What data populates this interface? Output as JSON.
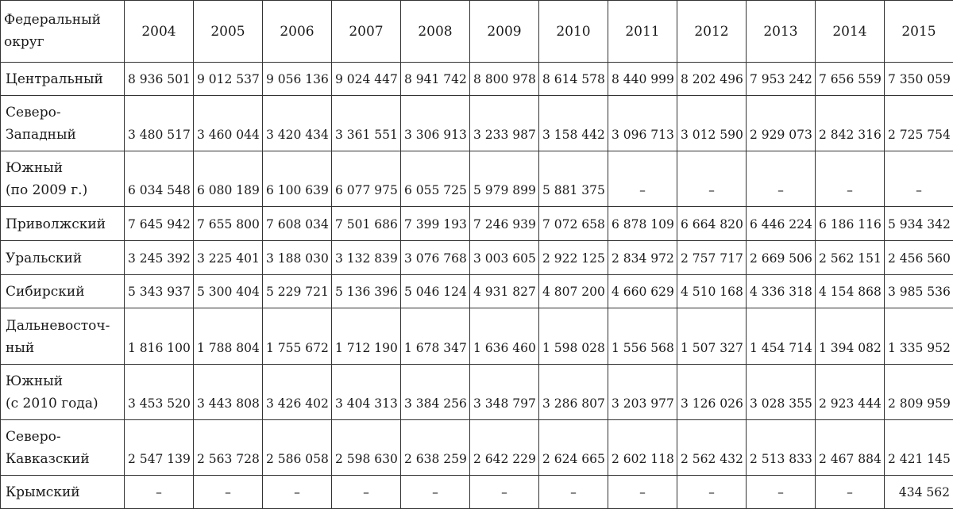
{
  "table": {
    "header": {
      "region_label_line1": "Федеральный",
      "region_label_line2": "округ",
      "years": [
        "2004",
        "2005",
        "2006",
        "2007",
        "2008",
        "2009",
        "2010",
        "2011",
        "2012",
        "2013",
        "2014",
        "2015"
      ]
    },
    "rows": [
      {
        "name1": "Центральный",
        "name2": "",
        "values": [
          "8 936 501",
          "9 012 537",
          "9 056 136",
          "9 024 447",
          "8 941 742",
          "8 800 978",
          "8 614 578",
          "8 440 999",
          "8 202 496",
          "7 953 242",
          "7 656 559",
          "7 350 059"
        ]
      },
      {
        "name1": "Северо-",
        "name2": "Западный",
        "values": [
          "3 480 517",
          "3 460 044",
          "3 420 434",
          "3 361 551",
          "3 306 913",
          "3 233 987",
          "3 158 442",
          "3 096 713",
          "3 012 590",
          "2 929 073",
          "2 842 316",
          "2 725 754"
        ]
      },
      {
        "name1": "Южный",
        "name2": "(по 2009 г.)",
        "values": [
          "6 034 548",
          "6 080 189",
          "6 100 639",
          "6 077 975",
          "6 055 725",
          "5 979 899",
          "5 881 375",
          "–",
          "–",
          "–",
          "–",
          "–"
        ]
      },
      {
        "name1": "Приволжский",
        "name2": "",
        "values": [
          "7 645 942",
          "7 655 800",
          "7 608 034",
          "7 501 686",
          "7 399 193",
          "7 246 939",
          "7 072 658",
          "6 878 109",
          "6 664 820",
          "6 446 224",
          "6 186 116",
          "5 934 342"
        ]
      },
      {
        "name1": "Уральский",
        "name2": "",
        "values": [
          "3 245 392",
          "3 225 401",
          "3 188 030",
          "3 132 839",
          "3 076 768",
          "3 003 605",
          "2 922 125",
          "2 834 972",
          "2 757 717",
          "2 669 506",
          "2 562 151",
          "2 456 560"
        ]
      },
      {
        "name1": "Сибирский",
        "name2": "",
        "values": [
          "5 343 937",
          "5 300 404",
          "5 229 721",
          "5 136 396",
          "5 046 124",
          "4 931 827",
          "4 807 200",
          "4 660 629",
          "4 510 168",
          "4 336 318",
          "4 154 868",
          "3 985 536"
        ]
      },
      {
        "name1": "Дальневосточ-",
        "name2": "ный",
        "values": [
          "1 816 100",
          "1 788 804",
          "1 755 672",
          "1 712 190",
          "1 678 347",
          "1 636 460",
          "1 598 028",
          "1 556 568",
          "1 507 327",
          "1 454 714",
          "1 394 082",
          "1 335 952"
        ]
      },
      {
        "name1": "Южный",
        "name2": "(с 2010 года)",
        "values": [
          "3 453 520",
          "3 443 808",
          "3 426 402",
          "3 404 313",
          "3 384 256",
          "3 348 797",
          "3 286 807",
          "3 203 977",
          "3 126 026",
          "3 028 355",
          "2 923 444",
          "2 809 959"
        ]
      },
      {
        "name1": "Северо-",
        "name2": "Кавказский",
        "values": [
          "2 547 139",
          "2 563 728",
          "2 586 058",
          "2 598 630",
          "2 638 259",
          "2 642 229",
          "2 624 665",
          "2 602 118",
          "2 562 432",
          "2 513 833",
          "2 467 884",
          "2 421 145"
        ]
      },
      {
        "name1": "Крымский",
        "name2": "",
        "values": [
          "–",
          "–",
          "–",
          "–",
          "–",
          "–",
          "–",
          "–",
          "–",
          "–",
          "–",
          "434 562"
        ]
      }
    ]
  }
}
